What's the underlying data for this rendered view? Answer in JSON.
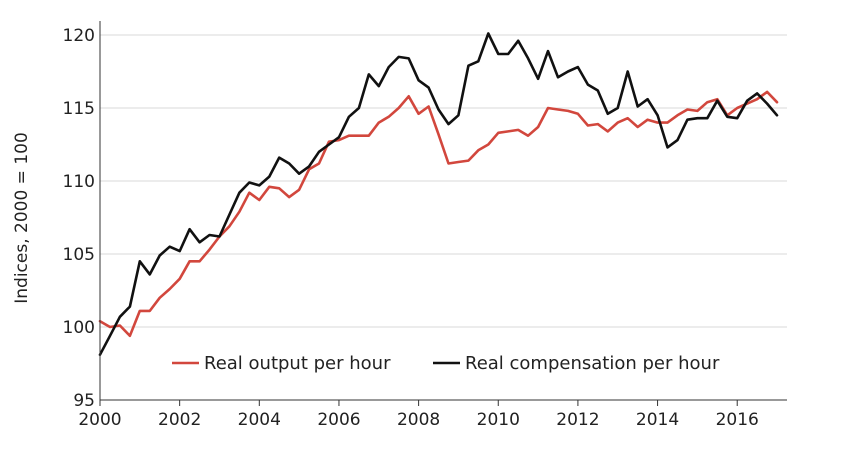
{
  "chart_data": {
    "type": "line",
    "title": "",
    "xlabel": "",
    "ylabel": "Indices, 2000 = 100",
    "xlim": [
      2000,
      2017.25
    ],
    "ylim": [
      95,
      120
    ],
    "x_ticks": [
      2000,
      2002,
      2004,
      2006,
      2008,
      2010,
      2012,
      2014,
      2016
    ],
    "x_tick_labels": [
      "2000",
      "2002",
      "2004",
      "2006",
      "2008",
      "2010",
      "2012",
      "2014",
      "2016"
    ],
    "y_ticks": [
      95,
      100,
      105,
      110,
      115,
      120
    ],
    "y_tick_labels": [
      "95",
      "100",
      "105",
      "110",
      "115",
      "120"
    ],
    "grid": "horizontal",
    "legend_position": "bottom-center",
    "x": [
      2000.0,
      2000.25,
      2000.5,
      2000.75,
      2001.0,
      2001.25,
      2001.5,
      2001.75,
      2002.0,
      2002.25,
      2002.5,
      2002.75,
      2003.0,
      2003.25,
      2003.5,
      2003.75,
      2004.0,
      2004.25,
      2004.5,
      2004.75,
      2005.0,
      2005.25,
      2005.5,
      2005.75,
      2006.0,
      2006.25,
      2006.5,
      2006.75,
      2007.0,
      2007.25,
      2007.5,
      2007.75,
      2008.0,
      2008.25,
      2008.5,
      2008.75,
      2009.0,
      2009.25,
      2009.5,
      2009.75,
      2010.0,
      2010.25,
      2010.5,
      2010.75,
      2011.0,
      2011.25,
      2011.5,
      2011.75,
      2012.0,
      2012.25,
      2012.5,
      2012.75,
      2013.0,
      2013.25,
      2013.5,
      2013.75,
      2014.0,
      2014.25,
      2014.5,
      2014.75,
      2015.0,
      2015.25,
      2015.5,
      2015.75,
      2016.0,
      2016.25,
      2016.5,
      2016.75,
      2017.0
    ],
    "series": [
      {
        "name": "Real output per hour",
        "color": "#d2473d",
        "values": [
          100.4,
          100.0,
          100.1,
          99.4,
          101.1,
          101.1,
          102.0,
          102.6,
          103.3,
          104.5,
          104.5,
          105.3,
          106.2,
          106.9,
          107.9,
          109.2,
          108.7,
          109.6,
          109.5,
          108.9,
          109.4,
          110.8,
          111.2,
          112.7,
          112.8,
          113.1,
          113.1,
          113.1,
          114.0,
          114.4,
          115.0,
          115.8,
          114.6,
          115.1,
          113.2,
          111.2,
          111.3,
          111.4,
          112.1,
          112.5,
          113.3,
          113.4,
          113.5,
          113.1,
          113.7,
          115.0,
          114.9,
          114.8,
          114.6,
          113.8,
          113.9,
          113.4,
          114.0,
          114.3,
          113.7,
          114.2,
          114.0,
          114.0,
          114.5,
          114.9,
          114.8,
          115.4,
          115.6,
          114.5,
          115.0,
          115.3,
          115.6,
          116.1,
          115.4
        ]
      },
      {
        "name": "Real compensation per hour",
        "color": "#111111",
        "values": [
          98.1,
          99.4,
          100.7,
          101.4,
          104.5,
          103.6,
          104.9,
          105.5,
          105.2,
          106.7,
          105.8,
          106.3,
          106.2,
          107.7,
          109.2,
          109.9,
          109.7,
          110.3,
          111.6,
          111.2,
          110.5,
          111.0,
          112.0,
          112.5,
          113.0,
          114.4,
          115.0,
          117.3,
          116.5,
          117.8,
          118.5,
          118.4,
          116.9,
          116.4,
          114.9,
          113.9,
          114.5,
          117.9,
          118.2,
          120.1,
          118.7,
          118.7,
          119.6,
          118.4,
          117.0,
          118.9,
          117.1,
          117.5,
          117.8,
          116.6,
          116.2,
          114.6,
          115.0,
          117.5,
          115.1,
          115.6,
          114.5,
          112.3,
          112.8,
          114.2,
          114.3,
          114.3,
          115.5,
          114.4,
          114.3,
          115.5,
          116.0,
          115.3,
          114.5
        ]
      }
    ]
  }
}
